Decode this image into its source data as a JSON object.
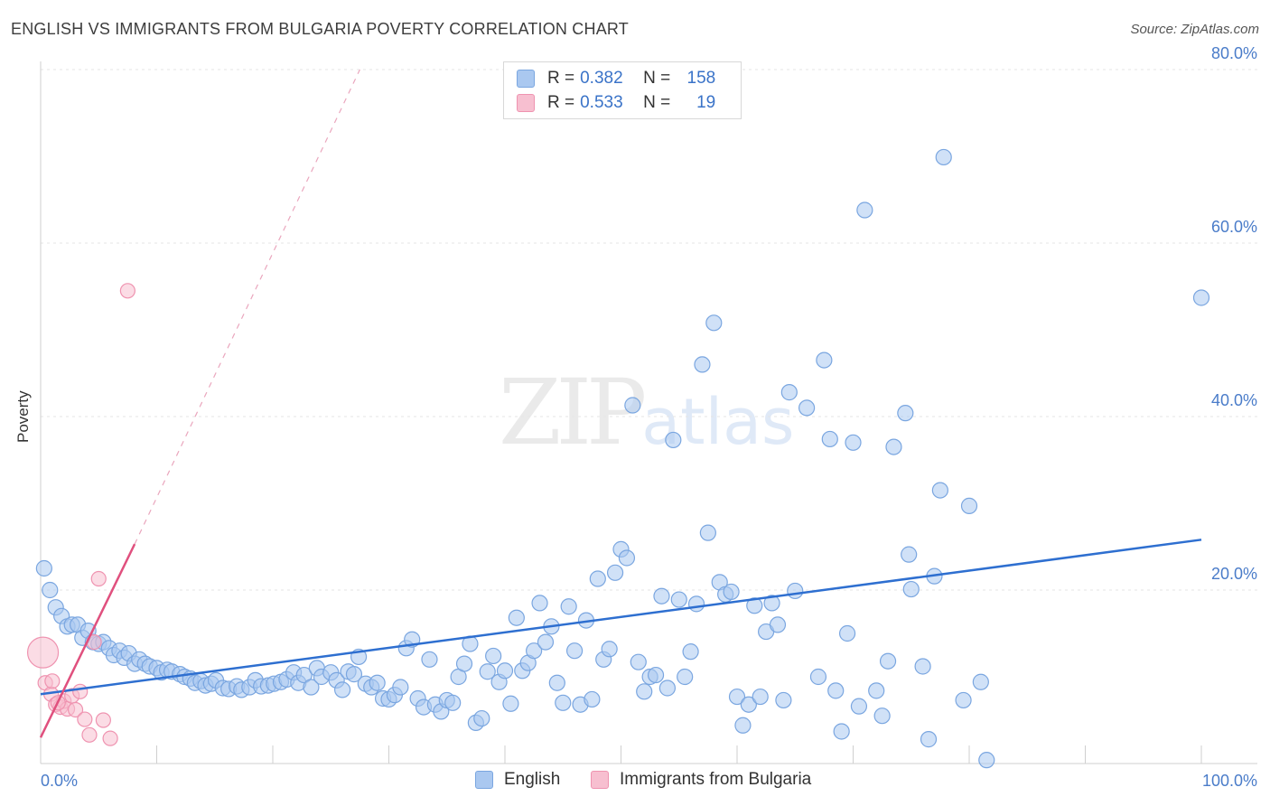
{
  "title": "ENGLISH VS IMMIGRANTS FROM BULGARIA POVERTY CORRELATION CHART",
  "source": "Source: ZipAtlas.com",
  "watermark": {
    "zip": "ZIP",
    "atlas": "atlas"
  },
  "legend": {
    "english": {
      "r_label": "R = ",
      "r_value": "0.382",
      "n_label": "N = ",
      "n_value": "158"
    },
    "bulgaria": {
      "r_label": "R = ",
      "r_value": "0.533",
      "n_label": "N = ",
      "n_value": "19"
    }
  },
  "colors": {
    "english_fill": "#aac8f0",
    "english_stroke": "#7aa6e0",
    "english_line": "#2e6fd0",
    "bulgaria_fill": "#f7bfd0",
    "bulgaria_stroke": "#ef93b0",
    "bulgaria_line": "#e0507e",
    "axis_text": "#4a7cc9",
    "grid": "#e5e5e5"
  },
  "chart_data": {
    "type": "scatter",
    "title": "ENGLISH VS IMMIGRANTS FROM BULGARIA POVERTY CORRELATION CHART",
    "ylabel": "Poverty",
    "xlabel": "",
    "xlim": [
      0,
      100
    ],
    "ylim": [
      0,
      80
    ],
    "x_tick_labels": [
      "0.0%",
      "100.0%"
    ],
    "y_ticks": [
      {
        "value": 20,
        "label": "20.0%"
      },
      {
        "value": 40,
        "label": "40.0%"
      },
      {
        "value": 60,
        "label": "60.0%"
      },
      {
        "value": 80,
        "label": "80.0%"
      }
    ],
    "series": [
      {
        "name": "English",
        "r": 0.382,
        "n": 158,
        "trend": {
          "x": [
            0,
            100
          ],
          "y": [
            8.0,
            25.8
          ]
        },
        "points": [
          [
            0.3,
            22.5
          ],
          [
            0.8,
            20.0
          ],
          [
            1.3,
            18.0
          ],
          [
            1.8,
            17.0
          ],
          [
            2.3,
            15.8
          ],
          [
            2.7,
            16.0
          ],
          [
            3.2,
            16.0
          ],
          [
            3.6,
            14.5
          ],
          [
            4.1,
            15.3
          ],
          [
            4.5,
            14.0
          ],
          [
            5.0,
            13.8
          ],
          [
            5.4,
            14.0
          ],
          [
            5.9,
            13.3
          ],
          [
            6.3,
            12.5
          ],
          [
            6.8,
            13.0
          ],
          [
            7.2,
            12.2
          ],
          [
            7.6,
            12.7
          ],
          [
            8.1,
            11.5
          ],
          [
            8.5,
            12.0
          ],
          [
            9.0,
            11.5
          ],
          [
            9.4,
            11.2
          ],
          [
            10.0,
            11.0
          ],
          [
            10.4,
            10.5
          ],
          [
            10.9,
            10.8
          ],
          [
            11.3,
            10.6
          ],
          [
            12.0,
            10.3
          ],
          [
            12.4,
            10.0
          ],
          [
            12.9,
            9.8
          ],
          [
            13.3,
            9.3
          ],
          [
            13.8,
            9.5
          ],
          [
            14.2,
            9.0
          ],
          [
            14.7,
            9.2
          ],
          [
            15.1,
            9.6
          ],
          [
            15.7,
            8.7
          ],
          [
            16.2,
            8.6
          ],
          [
            16.9,
            8.9
          ],
          [
            17.3,
            8.5
          ],
          [
            18.0,
            8.8
          ],
          [
            18.5,
            9.6
          ],
          [
            19.0,
            8.9
          ],
          [
            19.6,
            9.0
          ],
          [
            20.1,
            9.2
          ],
          [
            20.7,
            9.4
          ],
          [
            21.2,
            9.7
          ],
          [
            21.8,
            10.5
          ],
          [
            22.2,
            9.3
          ],
          [
            22.7,
            10.2
          ],
          [
            23.3,
            8.8
          ],
          [
            23.8,
            11.0
          ],
          [
            24.2,
            10.0
          ],
          [
            25.0,
            10.5
          ],
          [
            25.5,
            9.6
          ],
          [
            26.0,
            8.5
          ],
          [
            26.5,
            10.6
          ],
          [
            27.0,
            10.3
          ],
          [
            27.4,
            12.3
          ],
          [
            28.0,
            9.2
          ],
          [
            28.5,
            8.8
          ],
          [
            29.0,
            9.3
          ],
          [
            29.5,
            7.5
          ],
          [
            30.0,
            7.4
          ],
          [
            30.5,
            7.9
          ],
          [
            31.0,
            8.8
          ],
          [
            31.5,
            13.3
          ],
          [
            32.0,
            14.3
          ],
          [
            32.5,
            7.5
          ],
          [
            33.0,
            6.5
          ],
          [
            33.5,
            12.0
          ],
          [
            34.0,
            6.8
          ],
          [
            34.5,
            6.0
          ],
          [
            35.0,
            7.3
          ],
          [
            35.5,
            7.0
          ],
          [
            36.0,
            10.0
          ],
          [
            36.5,
            11.5
          ],
          [
            37.0,
            13.8
          ],
          [
            37.5,
            4.7
          ],
          [
            38.0,
            5.2
          ],
          [
            38.5,
            10.6
          ],
          [
            39.0,
            12.4
          ],
          [
            39.5,
            9.4
          ],
          [
            40.0,
            10.7
          ],
          [
            40.5,
            6.9
          ],
          [
            41.0,
            16.8
          ],
          [
            41.5,
            10.7
          ],
          [
            42.0,
            11.6
          ],
          [
            42.5,
            13.0
          ],
          [
            43.0,
            18.5
          ],
          [
            43.5,
            14.0
          ],
          [
            44.0,
            15.8
          ],
          [
            44.5,
            9.3
          ],
          [
            45.0,
            7.0
          ],
          [
            45.5,
            18.1
          ],
          [
            46.0,
            13.0
          ],
          [
            46.5,
            6.8
          ],
          [
            47.0,
            16.5
          ],
          [
            47.5,
            7.4
          ],
          [
            48.0,
            21.3
          ],
          [
            48.5,
            12.0
          ],
          [
            49.0,
            13.2
          ],
          [
            49.5,
            22.0
          ],
          [
            50.0,
            24.7
          ],
          [
            50.5,
            23.7
          ],
          [
            51.0,
            41.3
          ],
          [
            51.5,
            11.7
          ],
          [
            52.0,
            8.3
          ],
          [
            52.5,
            10.0
          ],
          [
            53.0,
            10.2
          ],
          [
            53.5,
            19.3
          ],
          [
            54.0,
            8.7
          ],
          [
            54.5,
            37.3
          ],
          [
            55.0,
            18.9
          ],
          [
            55.5,
            10.0
          ],
          [
            56.0,
            12.9
          ],
          [
            56.5,
            18.4
          ],
          [
            57.0,
            46.0
          ],
          [
            57.5,
            26.6
          ],
          [
            58.0,
            50.8
          ],
          [
            58.5,
            20.9
          ],
          [
            59.0,
            19.5
          ],
          [
            59.5,
            19.8
          ],
          [
            60.0,
            7.7
          ],
          [
            60.5,
            4.4
          ],
          [
            61.0,
            6.8
          ],
          [
            61.5,
            18.2
          ],
          [
            62.0,
            7.7
          ],
          [
            62.5,
            15.2
          ],
          [
            63.0,
            18.5
          ],
          [
            63.5,
            16.0
          ],
          [
            64.0,
            7.3
          ],
          [
            64.5,
            42.8
          ],
          [
            65.0,
            19.9
          ],
          [
            66.0,
            41.0
          ],
          [
            67.0,
            10.0
          ],
          [
            67.5,
            46.5
          ],
          [
            68.0,
            37.4
          ],
          [
            68.5,
            8.4
          ],
          [
            69.0,
            3.7
          ],
          [
            69.5,
            15.0
          ],
          [
            70.0,
            37.0
          ],
          [
            70.5,
            6.6
          ],
          [
            71.0,
            63.8
          ],
          [
            72.0,
            8.4
          ],
          [
            72.5,
            5.5
          ],
          [
            73.0,
            11.8
          ],
          [
            73.5,
            36.5
          ],
          [
            74.5,
            40.4
          ],
          [
            74.8,
            24.1
          ],
          [
            75.0,
            20.1
          ],
          [
            76.0,
            11.2
          ],
          [
            76.5,
            2.8
          ],
          [
            77.0,
            21.6
          ],
          [
            77.5,
            31.5
          ],
          [
            77.8,
            69.9
          ],
          [
            79.5,
            7.3
          ],
          [
            80.0,
            29.7
          ],
          [
            81.0,
            9.4
          ],
          [
            81.5,
            0.4
          ],
          [
            100.0,
            53.7
          ]
        ]
      },
      {
        "name": "Immigrants from Bulgaria",
        "r": 0.533,
        "n": 19,
        "trend": {
          "x": [
            0,
            8.1
          ],
          "y": [
            3.0,
            25.3
          ]
        },
        "trend_extended": {
          "x": [
            8.1,
            27.5
          ],
          "y": [
            25.3,
            80.0
          ]
        },
        "points": [
          [
            0.4,
            9.3
          ],
          [
            0.9,
            8.0
          ],
          [
            1.3,
            6.8
          ],
          [
            1.7,
            6.5
          ],
          [
            2.0,
            7.2
          ],
          [
            2.3,
            6.3
          ],
          [
            2.7,
            7.8
          ],
          [
            3.0,
            6.2
          ],
          [
            3.4,
            8.3
          ],
          [
            3.8,
            5.1
          ],
          [
            4.2,
            3.3
          ],
          [
            4.6,
            14.0
          ],
          [
            5.0,
            21.3
          ],
          [
            5.4,
            5.0
          ],
          [
            6.0,
            2.9
          ],
          [
            7.5,
            54.5
          ],
          [
            1.0,
            9.5
          ],
          [
            1.5,
            7.0
          ],
          [
            0.2,
            12.8
          ]
        ]
      }
    ]
  },
  "bottom_legend": {
    "english": "English",
    "bulgaria": "Immigrants from Bulgaria"
  }
}
